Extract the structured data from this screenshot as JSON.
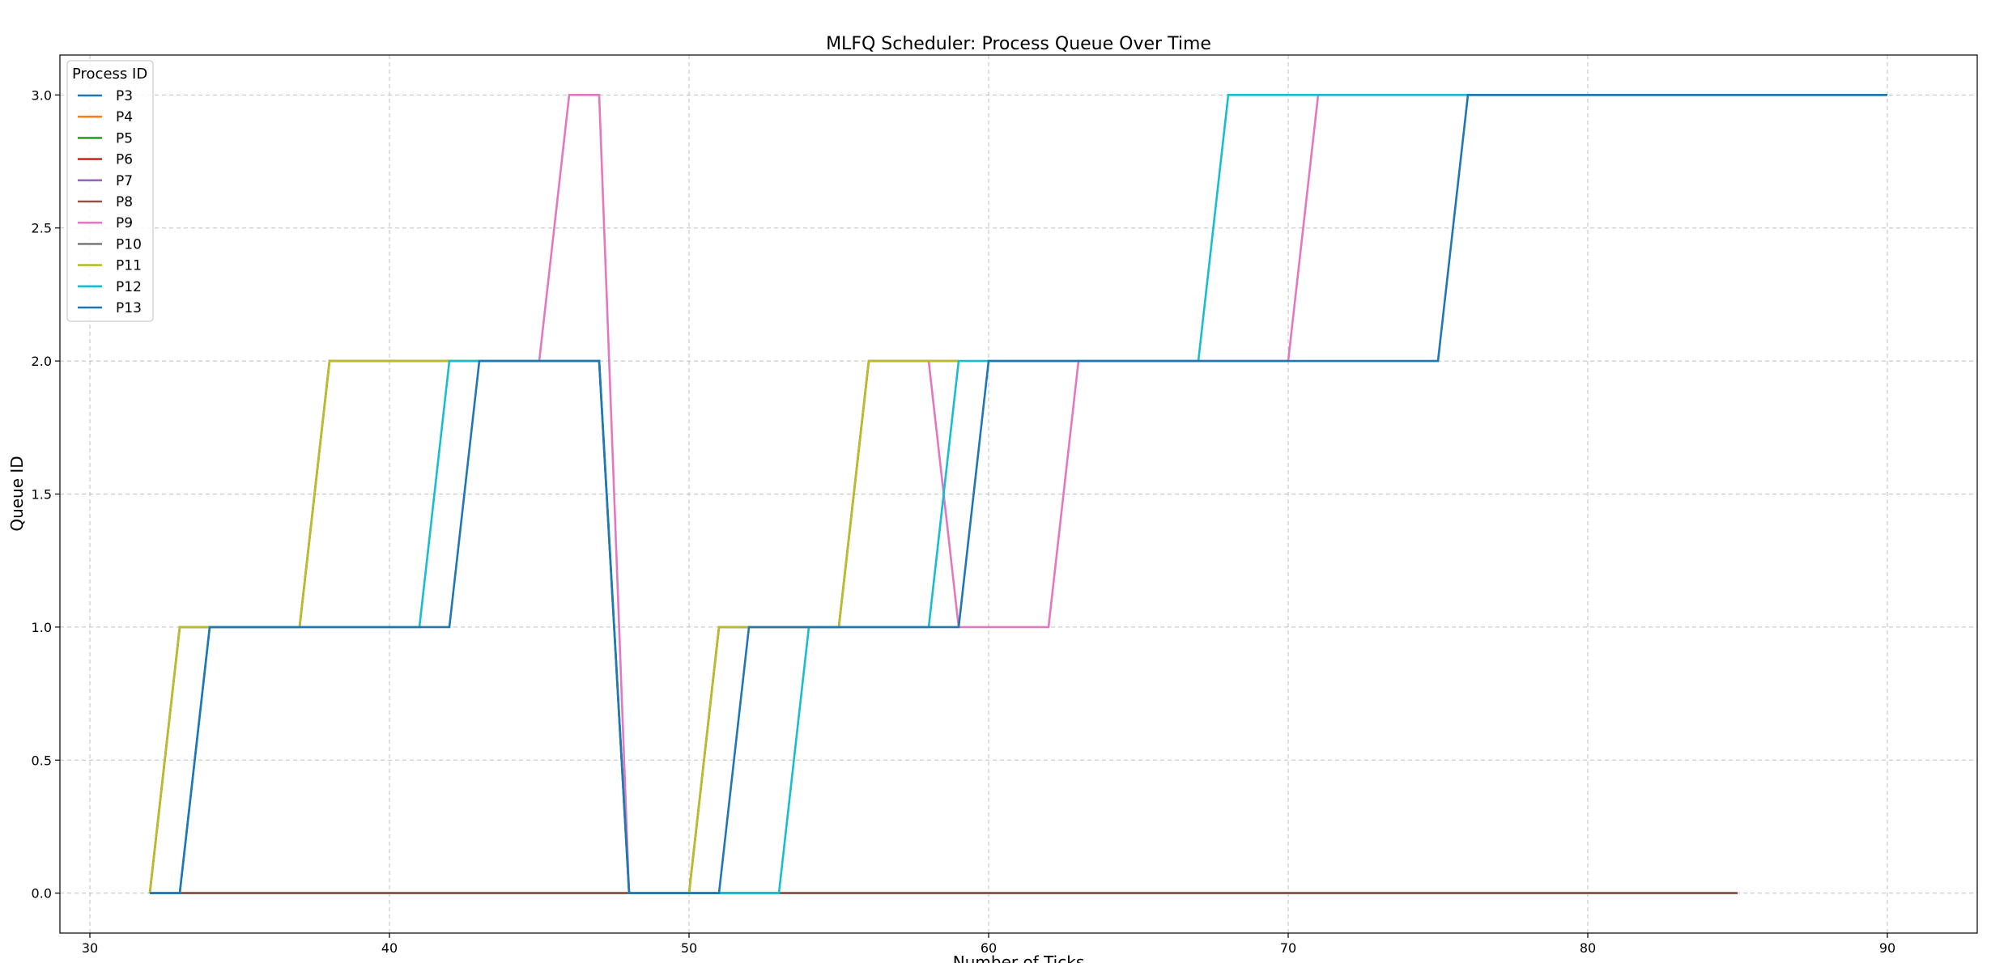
{
  "chart_data": {
    "type": "line",
    "title": "MLFQ Scheduler: Process Queue Over Time",
    "xlabel": "Number of Ticks",
    "ylabel": "Queue ID",
    "xlim": [
      29,
      93
    ],
    "ylim": [
      -0.15,
      3.15
    ],
    "xticks": [
      30,
      40,
      50,
      60,
      70,
      80,
      90
    ],
    "yticks": [
      0.0,
      0.5,
      1.0,
      1.5,
      2.0,
      2.5,
      3.0
    ],
    "ytick_labels": [
      "0.0",
      "0.5",
      "1.0",
      "1.5",
      "2.0",
      "2.5",
      "3.0"
    ],
    "grid": true,
    "legend": {
      "title": "Process ID",
      "placement": "top-left"
    },
    "series": [
      {
        "name": "P3",
        "color": "#1f77b4",
        "points": [
          [
            32,
            0
          ],
          [
            33,
            0
          ],
          [
            85,
            0
          ]
        ]
      },
      {
        "name": "P4",
        "color": "#ff7f0e",
        "points": [
          [
            32,
            0
          ],
          [
            85,
            0
          ]
        ]
      },
      {
        "name": "P5",
        "color": "#2ca02c",
        "points": [
          [
            32,
            0
          ],
          [
            85,
            0
          ]
        ]
      },
      {
        "name": "P6",
        "color": "#d62728",
        "points": [
          [
            32,
            0
          ],
          [
            85,
            0
          ]
        ]
      },
      {
        "name": "P7",
        "color": "#9467bd",
        "points": [
          [
            32,
            0
          ],
          [
            85,
            0
          ]
        ]
      },
      {
        "name": "P8",
        "color": "#8c564b",
        "points": [
          [
            32,
            0
          ],
          [
            85,
            0
          ]
        ]
      },
      {
        "name": "P9",
        "color": "#e377c2",
        "points": [
          [
            32,
            0
          ],
          [
            33,
            1
          ],
          [
            37,
            1
          ],
          [
            38,
            2
          ],
          [
            45,
            2
          ],
          [
            46,
            3
          ],
          [
            47,
            3
          ],
          [
            48,
            0
          ],
          [
            50,
            0
          ],
          [
            51,
            1
          ],
          [
            55,
            1
          ],
          [
            56,
            2
          ],
          [
            58,
            2
          ],
          [
            59,
            1
          ],
          [
            62,
            1
          ],
          [
            63,
            2
          ],
          [
            70,
            2
          ],
          [
            71,
            3
          ],
          [
            90,
            3
          ]
        ]
      },
      {
        "name": "P10",
        "color": "#7f7f7f",
        "points": [
          [
            32,
            0
          ],
          [
            33,
            1
          ],
          [
            37,
            1
          ],
          [
            38,
            2
          ],
          [
            47,
            2
          ],
          [
            48,
            0
          ],
          [
            50,
            0
          ],
          [
            51,
            1
          ],
          [
            55,
            1
          ],
          [
            56,
            2
          ],
          [
            59,
            2
          ]
        ]
      },
      {
        "name": "P11",
        "color": "#bcbd22",
        "points": [
          [
            32,
            0
          ],
          [
            33,
            1
          ],
          [
            37,
            1
          ],
          [
            38,
            2
          ],
          [
            47,
            2
          ],
          [
            48,
            0
          ],
          [
            50,
            0
          ],
          [
            51,
            1
          ],
          [
            55,
            1
          ],
          [
            56,
            2
          ],
          [
            59,
            2
          ]
        ]
      },
      {
        "name": "P12",
        "color": "#17becf",
        "points": [
          [
            32,
            0
          ],
          [
            33,
            0
          ],
          [
            34,
            1
          ],
          [
            41,
            1
          ],
          [
            42,
            2
          ],
          [
            47,
            2
          ],
          [
            48,
            0
          ],
          [
            53,
            0
          ],
          [
            54,
            1
          ],
          [
            58,
            1
          ],
          [
            59,
            2
          ],
          [
            67,
            2
          ],
          [
            68,
            3
          ],
          [
            90,
            3
          ]
        ]
      },
      {
        "name": "P13",
        "color": "#1f77b4",
        "points": [
          [
            32,
            0
          ],
          [
            33,
            0
          ],
          [
            34,
            1
          ],
          [
            42,
            1
          ],
          [
            43,
            2
          ],
          [
            47,
            2
          ],
          [
            48,
            0
          ],
          [
            51,
            0
          ],
          [
            52,
            1
          ],
          [
            59,
            1
          ],
          [
            60,
            2
          ],
          [
            75,
            2
          ],
          [
            76,
            3
          ],
          [
            90,
            3
          ]
        ]
      }
    ]
  }
}
